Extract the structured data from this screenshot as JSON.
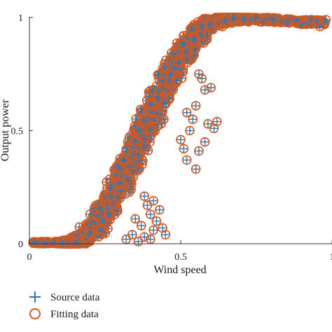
{
  "colors": {
    "source": "#2e77b6",
    "fitting": "#cc5a26",
    "axis": "#333333"
  },
  "chart_data": {
    "type": "scatter",
    "xlabel": "Wind speed",
    "ylabel": "Output power",
    "xlim": [
      0,
      1
    ],
    "ylim": [
      0,
      1
    ],
    "xticks": [
      {
        "value": 0,
        "label": "0"
      },
      {
        "value": 0.5,
        "label": "0.5"
      },
      {
        "value": 1,
        "label": "1"
      }
    ],
    "yticks": [
      {
        "value": 0,
        "label": "0"
      },
      {
        "value": 0.5,
        "label": "0.5"
      },
      {
        "value": 1,
        "label": "1"
      }
    ],
    "legend_position": "bottom-left",
    "series": [
      {
        "name": "Source data",
        "marker": "plus",
        "color": "#2e77b6"
      },
      {
        "name": "Fitting data",
        "marker": "circle",
        "color": "#cc5a26"
      }
    ],
    "curve": {
      "x": [
        0.01,
        0.05,
        0.1,
        0.13,
        0.15,
        0.17,
        0.19,
        0.21,
        0.23,
        0.25,
        0.27,
        0.29,
        0.31,
        0.33,
        0.35,
        0.37,
        0.39,
        0.41,
        0.43,
        0.45,
        0.47,
        0.49,
        0.51,
        0.53,
        0.55,
        0.57,
        0.6,
        0.63,
        0.66,
        0.7,
        0.75,
        0.8,
        0.85,
        0.9,
        0.95,
        0.98
      ],
      "y": [
        0.0,
        0.0,
        0.0,
        0.0,
        0.005,
        0.015,
        0.035,
        0.065,
        0.1,
        0.145,
        0.19,
        0.24,
        0.295,
        0.35,
        0.41,
        0.47,
        0.53,
        0.59,
        0.645,
        0.7,
        0.75,
        0.8,
        0.845,
        0.885,
        0.92,
        0.95,
        0.975,
        0.99,
        1.0,
        1.0,
        1.0,
        1.0,
        0.995,
        0.99,
        0.99,
        0.985
      ]
    },
    "band_halfwidth_x": 0.05,
    "outliers": [
      [
        0.62,
        0.54
      ],
      [
        0.61,
        0.51
      ],
      [
        0.59,
        0.53
      ],
      [
        0.52,
        0.58
      ],
      [
        0.55,
        0.61
      ],
      [
        0.58,
        0.68
      ],
      [
        0.6,
        0.69
      ],
      [
        0.57,
        0.73
      ],
      [
        0.56,
        0.75
      ],
      [
        0.53,
        0.5
      ],
      [
        0.5,
        0.46
      ],
      [
        0.56,
        0.41
      ],
      [
        0.52,
        0.37
      ],
      [
        0.55,
        0.33
      ],
      [
        0.51,
        0.42
      ],
      [
        0.58,
        0.45
      ],
      [
        0.54,
        0.55
      ],
      [
        0.44,
        0.07
      ],
      [
        0.41,
        0.06
      ],
      [
        0.42,
        0.1
      ],
      [
        0.4,
        0.13
      ],
      [
        0.43,
        0.15
      ],
      [
        0.39,
        0.17
      ],
      [
        0.41,
        0.19
      ],
      [
        0.38,
        0.03
      ],
      [
        0.36,
        0.01
      ],
      [
        0.34,
        0.04
      ],
      [
        0.32,
        0.02
      ],
      [
        0.37,
        0.08
      ],
      [
        0.35,
        0.11
      ],
      [
        0.4,
        0.02
      ],
      [
        0.45,
        0.04
      ],
      [
        0.38,
        0.21
      ],
      [
        0.33,
        0.34
      ],
      [
        0.31,
        0.37
      ],
      [
        0.36,
        0.39
      ],
      [
        0.34,
        0.43
      ],
      [
        0.32,
        0.41
      ],
      [
        0.35,
        0.45
      ],
      [
        0.3,
        0.33
      ],
      [
        0.37,
        0.48
      ],
      [
        0.38,
        0.46
      ],
      [
        0.33,
        0.47
      ],
      [
        0.36,
        0.5
      ],
      [
        0.85,
        0.98
      ],
      [
        0.9,
        0.97
      ],
      [
        0.93,
        0.99
      ],
      [
        0.96,
        0.96
      ],
      [
        0.98,
        0.99
      ],
      [
        0.88,
        0.985
      ],
      [
        0.8,
        0.995
      ],
      [
        0.02,
        0.005
      ],
      [
        0.05,
        0.0
      ],
      [
        0.08,
        0.005
      ],
      [
        0.11,
        0.0
      ]
    ]
  }
}
